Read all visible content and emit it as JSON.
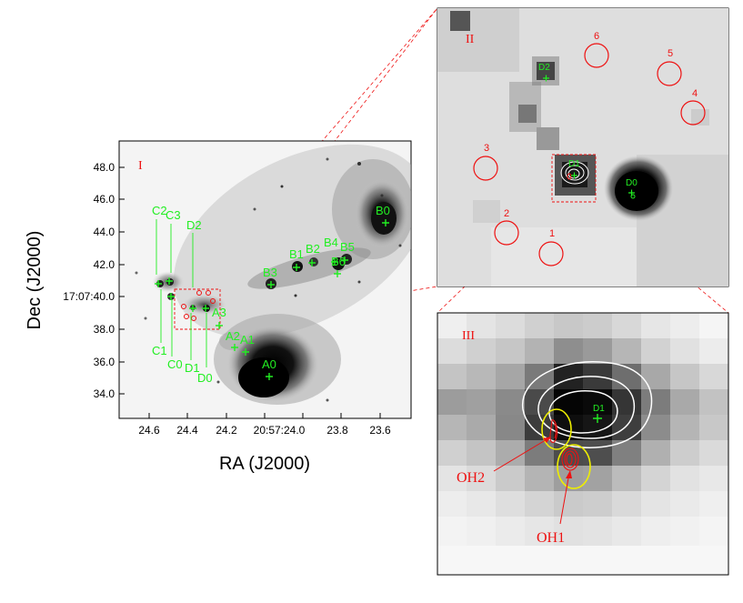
{
  "figure": {
    "panel_labels": {
      "p1": "I",
      "p2": "II",
      "p3": "III"
    },
    "axes": {
      "xlabel": "RA (J2000)",
      "ylabel": "Dec (J2000)",
      "xticks": [
        "24.6",
        "24.4",
        "24.2",
        "20:57:24.0",
        "23.8",
        "23.6"
      ],
      "yticks": [
        "48.0",
        "46.0",
        "44.0",
        "42.0",
        "17:07:40.0",
        "38.0",
        "36.0",
        "34.0"
      ]
    },
    "panel1_sources": {
      "b0": "B0",
      "b1": "B1",
      "b2": "B2",
      "b3": "B3",
      "b4": "B4",
      "b5": "B5",
      "b6": "B6",
      "a0": "A0",
      "a1": "A1",
      "a2": "A2",
      "a3": "A3",
      "c0": "C0",
      "c1": "C1",
      "c2": "C2",
      "c3": "C3",
      "d0": "D0",
      "d1": "D1",
      "d2": "D2"
    },
    "panel2_sources": {
      "d0": "D0",
      "d1": "D1",
      "d2": "D2"
    },
    "panel2_apertures": [
      "1",
      "2",
      "3",
      "4",
      "5",
      "6"
    ],
    "panel3": {
      "source": "D1",
      "oh1": "OH1",
      "oh2": "OH2"
    },
    "colors": {
      "green": "#22ee22",
      "red": "#ee1111",
      "yellow": "#eeee00",
      "white": "#ffffff",
      "black": "#000000"
    }
  }
}
